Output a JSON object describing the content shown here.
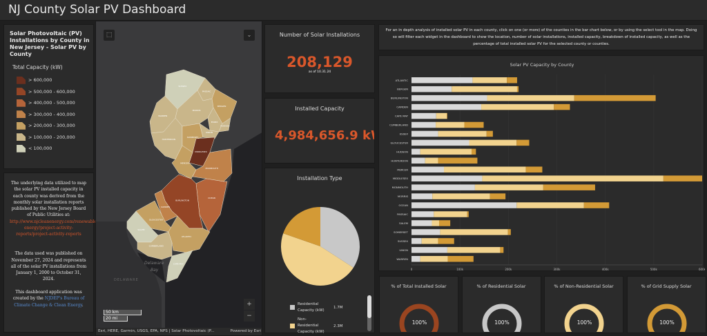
{
  "header": {
    "title": "NJ County Solar PV Dashboard"
  },
  "legend": {
    "title": "Solar Photovoltaic (PV) Installations by County in New Jersey - Solar PV by County",
    "field": "Total Capacity (kW)",
    "items": [
      {
        "label": "> 600,000",
        "color": "#6b2f1e"
      },
      {
        "label": "> 500,000 - 600,000",
        "color": "#944526"
      },
      {
        "label": "> 400,000 - 500,000",
        "color": "#b5643a"
      },
      {
        "label": "> 300,000 - 400,000",
        "color": "#c0824a"
      },
      {
        "label": "> 200,000 - 300,000",
        "color": "#c4a062"
      },
      {
        "label": "> 100,000 - 200,000",
        "color": "#c9b68a"
      },
      {
        "label": "< 100,000",
        "color": "#cfd0b8"
      }
    ]
  },
  "info": {
    "p1": "The underlying data utilized to map the solar PV installed capacity in each county was derived from the monthly solar installation reports published by the New Jersey Board of Public Utilities at:",
    "link": "http://www.njcleanenergy.com/renewable-energy/project-activity-reports/project-activity-reports",
    "p2": "The data used was published on November 27, 2024 and represents all of the solar PV installations from January 1, 2000 to October 31, 2024.",
    "p3a": "This dashboard application was created by the",
    "p3link": "NJDEP's Bureau of Climate Change & Clean Energy",
    "p3b": "."
  },
  "map": {
    "counties": [
      {
        "name": "SUSSEX",
        "color": "#cfd0b8"
      },
      {
        "name": "PASSAIC",
        "color": "#c9b68a"
      },
      {
        "name": "BERGEN",
        "color": "#c4a062"
      },
      {
        "name": "WARREN",
        "color": "#c9b68a"
      },
      {
        "name": "MORRIS",
        "color": "#c9b68a"
      },
      {
        "name": "ESSEX",
        "color": "#c9b68a"
      },
      {
        "name": "HUDSON",
        "color": "#c9b68a"
      },
      {
        "name": "UNION",
        "color": "#c9b68a"
      },
      {
        "name": "HUNTERDON",
        "color": "#c9b68a"
      },
      {
        "name": "SOMERSET",
        "color": "#c4a062"
      },
      {
        "name": "MIDDLESEX",
        "color": "#6b2f1e"
      },
      {
        "name": "MERCER",
        "color": "#c4a062"
      },
      {
        "name": "MONMOUTH",
        "color": "#c0824a"
      },
      {
        "name": "OCEAN",
        "color": "#b5643a"
      },
      {
        "name": "BURLINGTON",
        "color": "#944526"
      },
      {
        "name": "CAMDEN",
        "color": "#c0824a"
      },
      {
        "name": "GLOUCESTER",
        "color": "#c4a062"
      },
      {
        "name": "SALEM",
        "color": "#cfd0b8"
      },
      {
        "name": "CUMBERLAND",
        "color": "#c9b68a"
      },
      {
        "name": "ATLANTIC",
        "color": "#c4a062"
      },
      {
        "name": "CAPE MAY",
        "color": "#cfd0b8"
      }
    ],
    "water_labels": [
      "Delaware",
      "Bay"
    ],
    "state_label": "DELAWARE",
    "scale_km": "50 km",
    "scale_mi": "20 mi",
    "attribution": "Esri, HERE, Garmin, USGS, EPA, NPS | Solar Photovoltaic (P...",
    "powered": "Powered by Esri",
    "zoom_in": "+",
    "zoom_out": "−"
  },
  "installs": {
    "title": "Number of Solar Installations",
    "value": "208,129",
    "note": "as of 10.31.24"
  },
  "capacity": {
    "title": "Installed Capacity",
    "value": "4,984,656.9 kW"
  },
  "pie": {
    "title": "Installation Type",
    "legend": [
      {
        "label": "Residential Capacity (kW)",
        "value": "1.7M",
        "color": "#c8c8c8"
      },
      {
        "label": "Non-Residential Capacity (kW)",
        "value": "2.3M",
        "color": "#f2d38e"
      }
    ],
    "chart_data": {
      "type": "pie",
      "slices": [
        {
          "name": "Residential Capacity (kW)",
          "value": 1.7,
          "color": "#c8c8c8"
        },
        {
          "name": "Non-Residential Capacity (kW)",
          "value": 2.3,
          "color": "#f2d38e"
        },
        {
          "value": 0.98,
          "color": "#d39a36"
        }
      ]
    }
  },
  "description": "For an in depth analysis of installed solar PV in each county, click on one (or more) of the counties in the bar chart below, or by using the select tool in the map. Doing so will filter each widget in the dashboard to show the location, number of solar installations, installed capacity, breakdown of installed capacity, as well as the percentage of total installed solar PV for the selected county or counties.",
  "chart_data": {
    "type": "bar",
    "orientation": "horizontal",
    "stacked": true,
    "title": "Solar PV Capacity by County",
    "xlim": [
      0,
      600000
    ],
    "xticks": [
      "0",
      "100k",
      "200k",
      "300k",
      "400k",
      "500k",
      "600k"
    ],
    "grid": true,
    "categories": [
      "ATLANTIC",
      "BERGEN",
      "BURLINGTON",
      "CAMDEN",
      "CAPE MAY",
      "CUMBERLAND",
      "ESSEX",
      "GLOUCESTER",
      "HUDSON",
      "HUNTERDON",
      "MERCER",
      "MIDDLESEX",
      "MONMOUTH",
      "MORRIS",
      "OCEAN",
      "PASSAIC",
      "SALEM",
      "SOMERSET",
      "SUSSEX",
      "UNION",
      "WARREN"
    ],
    "series": [
      {
        "color": "#d9d9d9",
        "values": [
          126000,
          83000,
          156000,
          144000,
          51000,
          50000,
          55000,
          119000,
          18000,
          28000,
          67000,
          146000,
          131000,
          43000,
          217000,
          46000,
          42000,
          59000,
          21000,
          74000,
          18000
        ]
      },
      {
        "color": "#f2d38e",
        "values": [
          71000,
          135000,
          180000,
          150000,
          22000,
          59000,
          100000,
          98000,
          106000,
          27000,
          169000,
          374000,
          141000,
          119000,
          139000,
          69000,
          15000,
          140000,
          34000,
          109000,
          57000
        ]
      },
      {
        "color": "#d39a36",
        "values": [
          21000,
          3000,
          168000,
          33000,
          1000,
          40000,
          13000,
          26000,
          9000,
          81000,
          34000,
          80000,
          107000,
          32000,
          52000,
          3000,
          23000,
          6000,
          33000,
          7000,
          53000
        ]
      }
    ]
  },
  "gauges": [
    {
      "title": "% of Total Installed Solar",
      "value": "100%",
      "fraction": 1,
      "color": "#9a4520"
    },
    {
      "title": "% of Residential Solar",
      "value": "100%",
      "fraction": 1,
      "color": "#c8c8c8"
    },
    {
      "title": "% of Non-Residential Solar",
      "value": "100%",
      "fraction": 1,
      "color": "#f2d38e"
    },
    {
      "title": "% of Grid Supply Solar",
      "value": "100%",
      "fraction": 1,
      "color": "#d39a36"
    }
  ]
}
